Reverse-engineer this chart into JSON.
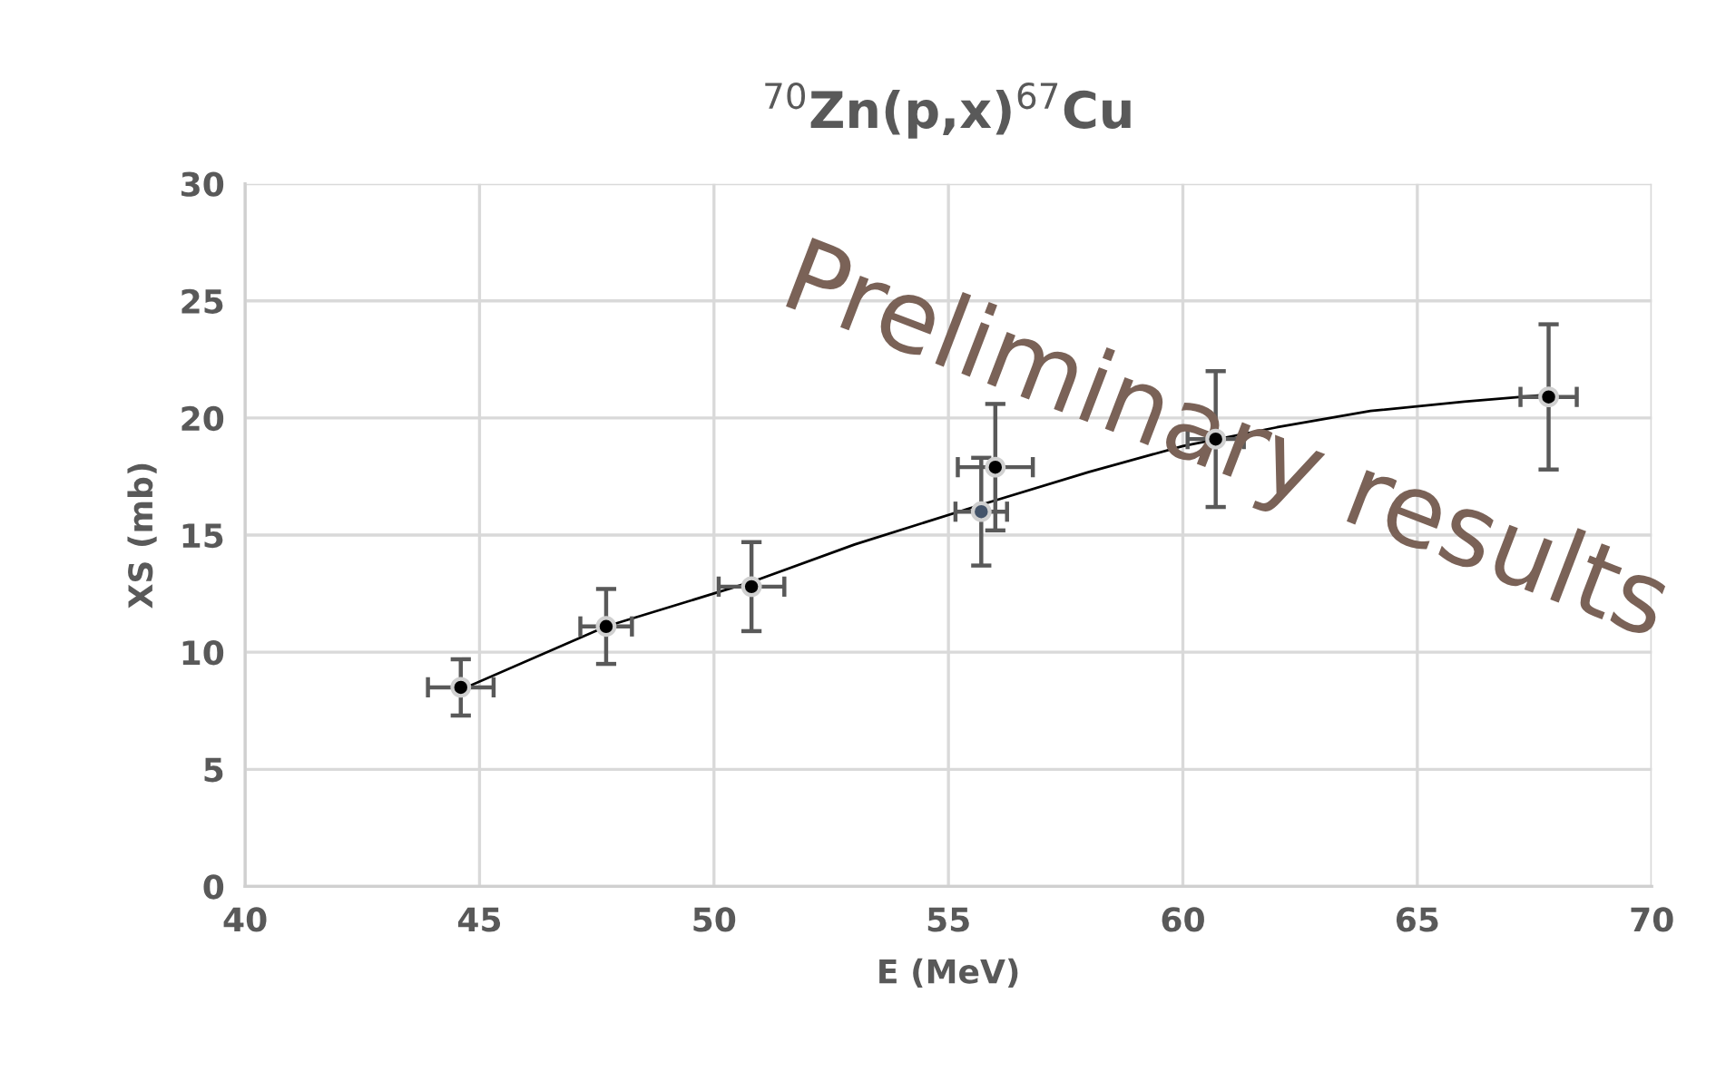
{
  "chart_data": {
    "type": "scatter",
    "title": "$^{70}$Zn(p,x)$^{67}$Cu",
    "xlabel": "E (MeV)",
    "ylabel": "XS (mb)",
    "xlim": [
      40,
      70
    ],
    "xticks": [
      40,
      45,
      50,
      55,
      60,
      65,
      70
    ],
    "ylim": [
      0,
      30
    ],
    "yticks": [
      0,
      5,
      10,
      15,
      20,
      25,
      30
    ],
    "grid": true,
    "series": [
      {
        "marker": "circle",
        "x": [
          44.6,
          47.7,
          50.8,
          55.7,
          56.0,
          60.7,
          67.8
        ],
        "values": [
          8.5,
          11.1,
          12.8,
          16.0,
          17.9,
          19.1,
          20.9
        ],
        "colors": [
          "#000000",
          "#000000",
          "#000000",
          "#44546a",
          "#000000",
          "#000000",
          "#000000"
        ],
        "errors": [
          1.2,
          1.6,
          1.9,
          2.3,
          2.7,
          2.9,
          3.1
        ],
        "xerrors": [
          0.7,
          0.55,
          0.7,
          0.55,
          0.8,
          0.6,
          0.6
        ]
      },
      {
        "type": "line",
        "color": "#000000",
        "x": [
          44.6,
          47.7,
          50.8,
          53.0,
          55.7,
          58.0,
          60.0,
          62.0,
          64.0,
          66.0,
          67.8
        ],
        "values": [
          8.4,
          11.1,
          13.0,
          14.6,
          16.3,
          17.7,
          18.8,
          19.6,
          20.3,
          20.7,
          21.0
        ]
      }
    ],
    "annotations": [
      "Preliminary results"
    ]
  }
}
